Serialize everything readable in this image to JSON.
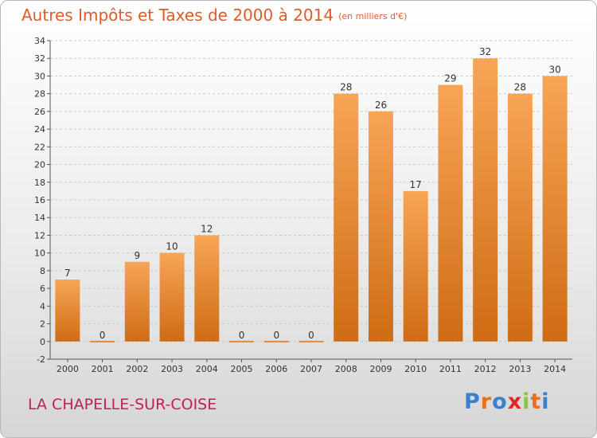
{
  "title": "Autres Impôts et Taxes de 2000 à 2014",
  "title_unit": "(en milliers d'€)",
  "town": "LA CHAPELLE-SUR-COISE",
  "logo": {
    "text": "Proxiti",
    "letter_colors": [
      "#3a7fd0",
      "#e86f1e",
      "#3a7fd0",
      "#e4262a",
      "#8bc53f",
      "#e86f1e",
      "#3a7fd0"
    ]
  },
  "colors": {
    "bar_top": "#f7a556",
    "bar_bottom": "#cf6c14",
    "axis_text": "#333333",
    "grid": "#c8c8c8"
  },
  "chart_data": {
    "type": "bar",
    "categories": [
      "2000",
      "2001",
      "2002",
      "2003",
      "2004",
      "2005",
      "2006",
      "2007",
      "2008",
      "2009",
      "2010",
      "2011",
      "2012",
      "2013",
      "2014"
    ],
    "values": [
      7,
      0,
      9,
      10,
      12,
      0,
      0,
      0,
      28,
      26,
      17,
      29,
      32,
      28,
      30
    ],
    "ylim": [
      -2,
      34
    ],
    "yticks": [
      -2,
      0,
      2,
      4,
      6,
      8,
      10,
      12,
      14,
      16,
      18,
      20,
      22,
      24,
      26,
      28,
      30,
      32,
      34
    ],
    "grid": "horizontal, dashed"
  }
}
